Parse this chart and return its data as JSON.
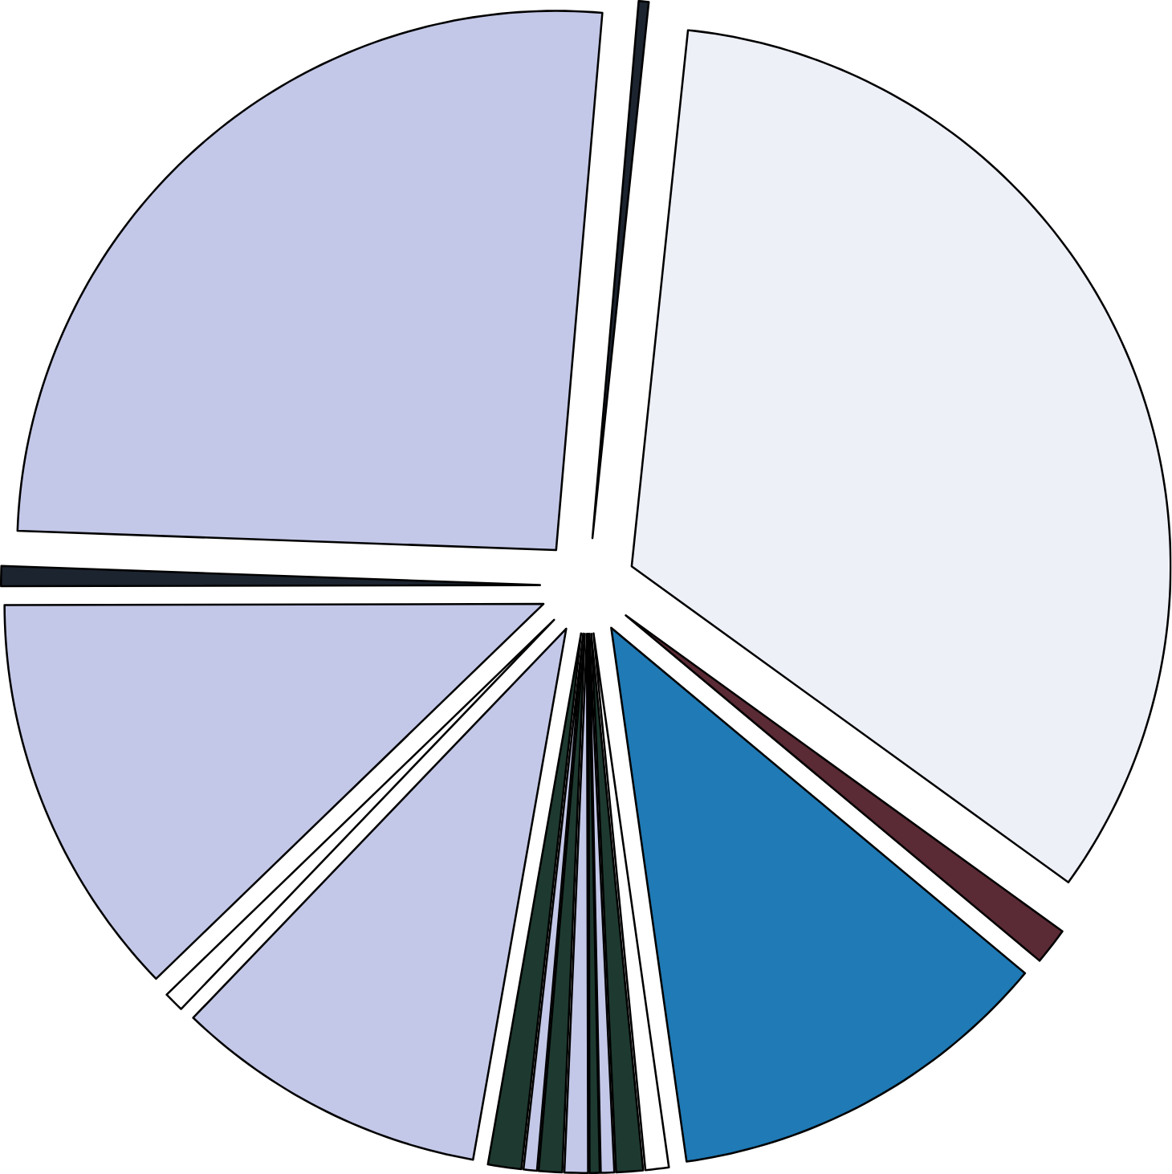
{
  "chart_data": {
    "type": "pie",
    "categories": [
      null,
      null,
      null,
      null,
      null,
      null,
      null,
      null,
      null,
      null,
      null,
      null,
      null,
      null,
      null,
      null,
      null
    ],
    "values": [
      33.3,
      1.1,
      11.7,
      0.7,
      0.8,
      0.4,
      0.3,
      0.7,
      0.7,
      0.4,
      1.0,
      9.4,
      0.6,
      12.2,
      0.6,
      25.8,
      0.3
    ],
    "colors": [
      "#eef0f8",
      "#5a2a35",
      "#1f7ab5",
      "#ffffff",
      "#1e3a30",
      "#c4c8e8",
      "#1e3a30",
      "#c4c8e8",
      "#1e3a30",
      "#c4c8e8",
      "#1e3a30",
      "#c4c8e8",
      "#ffffff",
      "#c4c8e8",
      "#1c2430",
      "#c4c8e8",
      "#1c2430"
    ]
  }
}
